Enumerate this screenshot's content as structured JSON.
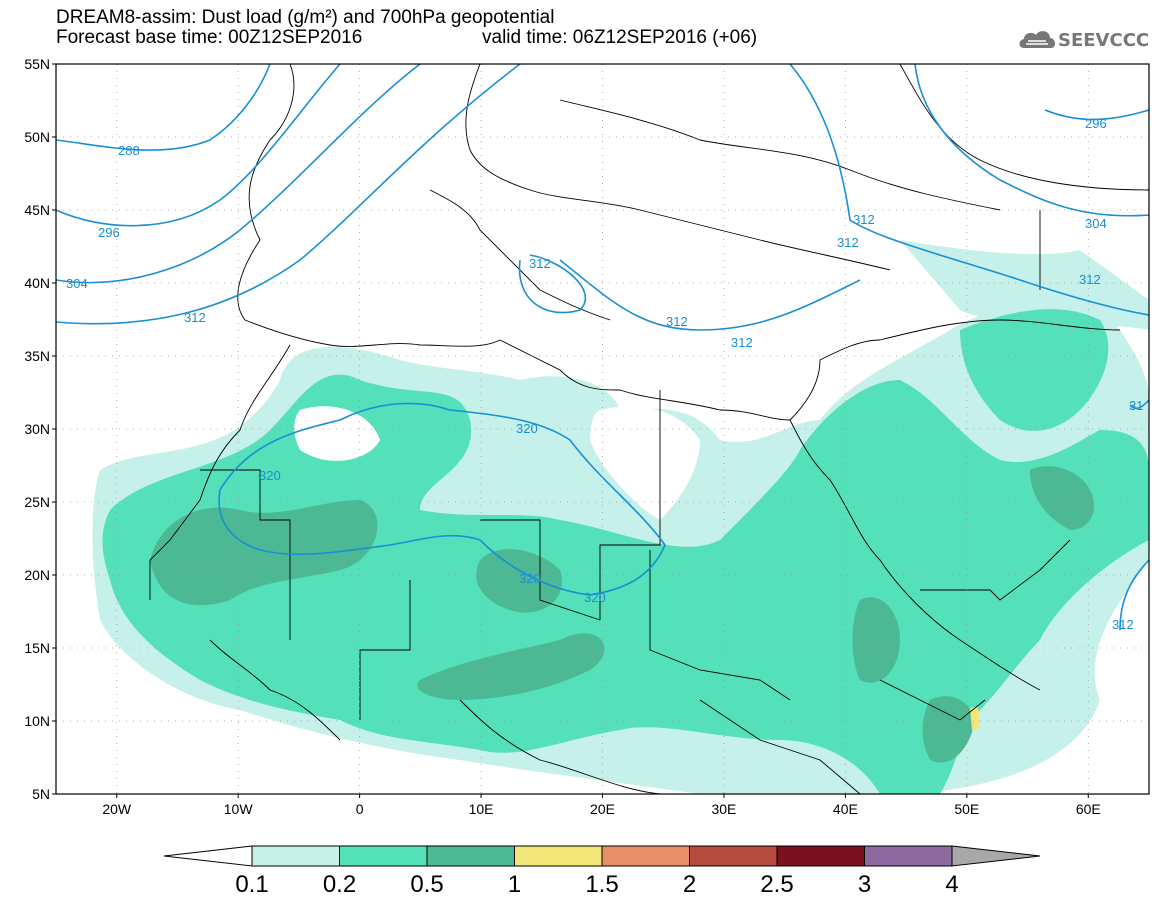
{
  "header": {
    "title_line1": "DREAM8-assim: Dust load (g/m²) and 700hPa geopotential",
    "title_line2": "Forecast base time: 00Z12SEP2016",
    "valid_time": "valid time: 06Z12SEP2016 (+06)",
    "logo_text": "SEEVCCC",
    "logo_icon": "cloud-icon"
  },
  "map": {
    "lat_labels": [
      "55N",
      "50N",
      "45N",
      "40N",
      "35N",
      "30N",
      "25N",
      "20N",
      "15N",
      "10N",
      "5N"
    ],
    "lon_labels": [
      "20W",
      "10W",
      "0",
      "10E",
      "20E",
      "30E",
      "40E",
      "50E",
      "60E"
    ],
    "lon_range": [
      -25,
      65
    ],
    "lat_range": [
      5,
      55
    ],
    "contour_color": "#1a8fd6",
    "contour_labels": [
      "288",
      "296",
      "304",
      "312",
      "312",
      "312",
      "312",
      "312",
      "312",
      "312",
      "320",
      "320",
      "320",
      "320",
      "296",
      "304",
      "31",
      "312"
    ]
  },
  "colorbar": {
    "ticks": [
      "0.1",
      "0.2",
      "0.5",
      "1",
      "1.5",
      "2",
      "2.5",
      "3",
      "4"
    ],
    "colors": [
      "#c6f0ea",
      "#54e0b8",
      "#4cb994",
      "#f2e678",
      "#e88f6a",
      "#b54b3e",
      "#7a1020",
      "#8c6aa0"
    ],
    "under_color": "#ffffff",
    "over_color": "#a8a8a8"
  }
}
